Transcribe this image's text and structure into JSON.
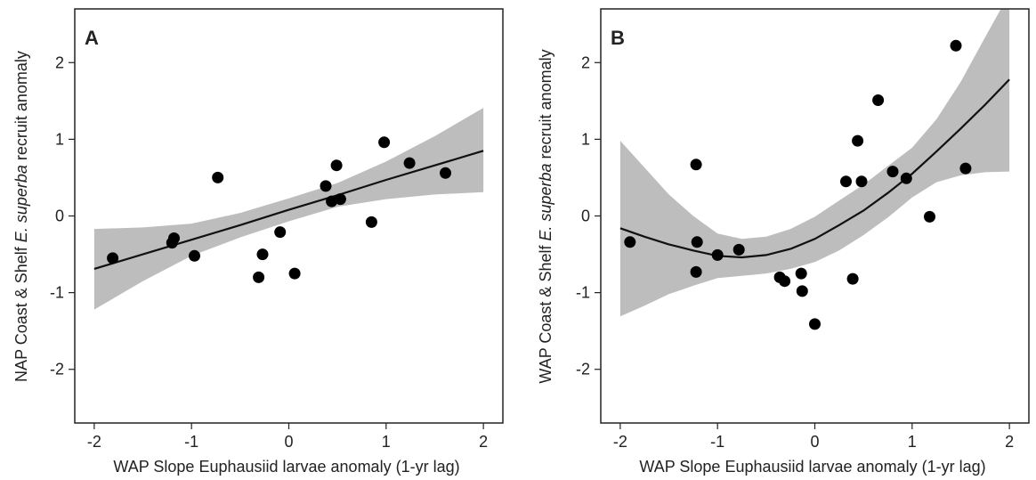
{
  "chart_data": [
    {
      "type": "scatter",
      "panel_label": "A",
      "ylabel_parts": [
        "NAP Coast & Shelf ",
        "E. superba",
        " recruit anomaly"
      ],
      "xlabel": "WAP Slope Euphausiid larvae anomaly (1-yr lag)",
      "xlim": [
        -2.2,
        2.2
      ],
      "ylim": [
        -2.7,
        2.7
      ],
      "xticks": [
        -2,
        -1,
        0,
        1,
        2
      ],
      "yticks": [
        -2,
        -1,
        0,
        1,
        2
      ],
      "grid": false,
      "points": {
        "x": [
          -1.81,
          -1.2,
          -1.18,
          -0.97,
          -0.73,
          -0.31,
          -0.27,
          -0.09,
          0.06,
          0.38,
          0.44,
          0.49,
          0.53,
          0.85,
          0.98,
          1.24,
          1.61
        ],
        "y": [
          -0.55,
          -0.35,
          -0.29,
          -0.52,
          0.5,
          -0.8,
          -0.5,
          -0.21,
          -0.75,
          0.39,
          0.19,
          0.66,
          0.22,
          -0.08,
          0.96,
          0.69,
          0.56
        ]
      },
      "fit": {
        "x": [
          -2.0,
          -1.5,
          -1.0,
          -0.5,
          0.0,
          0.5,
          1.0,
          1.5,
          2.0
        ],
        "y": [
          -0.69,
          -0.5,
          -0.31,
          -0.12,
          0.08,
          0.27,
          0.47,
          0.66,
          0.85
        ],
        "lower": [
          -1.22,
          -0.85,
          -0.52,
          -0.28,
          -0.07,
          0.12,
          0.22,
          0.28,
          0.31
        ],
        "upper": [
          -0.17,
          -0.15,
          -0.1,
          0.04,
          0.23,
          0.43,
          0.71,
          1.04,
          1.41
        ]
      },
      "colors": {
        "points": "#000000",
        "line": "#111111",
        "band": "#bdbdbd"
      }
    },
    {
      "type": "scatter",
      "panel_label": "B",
      "ylabel_parts": [
        "WAP Coast & Shelf ",
        "E. superba",
        " recruit anomaly"
      ],
      "xlabel": "WAP Slope Euphausiid larvae anomaly (1-yr lag)",
      "xlim": [
        -2.2,
        2.2
      ],
      "ylim": [
        -2.7,
        2.7
      ],
      "xticks": [
        -2,
        -1,
        0,
        1,
        2
      ],
      "yticks": [
        -2,
        -1,
        0,
        1,
        2
      ],
      "grid": false,
      "points": {
        "x": [
          -1.9,
          -1.22,
          -1.22,
          -1.21,
          -1.0,
          -0.78,
          -0.36,
          -0.31,
          -0.14,
          -0.13,
          0.0,
          0.32,
          0.39,
          0.44,
          0.48,
          0.65,
          0.8,
          0.94,
          1.18,
          1.45,
          1.55
        ],
        "y": [
          -0.34,
          -0.73,
          0.67,
          -0.34,
          -0.51,
          -0.44,
          -0.8,
          -0.85,
          -0.75,
          -0.98,
          -1.41,
          0.45,
          -0.82,
          0.98,
          0.45,
          1.51,
          0.58,
          0.49,
          -0.01,
          2.22,
          0.62
        ]
      },
      "fit": {
        "x": [
          -2.0,
          -1.75,
          -1.5,
          -1.25,
          -1.0,
          -0.75,
          -0.5,
          -0.25,
          0.0,
          0.25,
          0.5,
          0.75,
          1.0,
          1.25,
          1.5,
          1.75,
          2.0
        ],
        "y": [
          -0.16,
          -0.27,
          -0.37,
          -0.45,
          -0.52,
          -0.54,
          -0.51,
          -0.43,
          -0.3,
          -0.12,
          0.07,
          0.3,
          0.55,
          0.84,
          1.14,
          1.45,
          1.78
        ],
        "lower": [
          -1.31,
          -1.17,
          -1.02,
          -0.91,
          -0.81,
          -0.78,
          -0.75,
          -0.69,
          -0.6,
          -0.45,
          -0.25,
          -0.02,
          0.24,
          0.44,
          0.53,
          0.57,
          0.58
        ],
        "upper": [
          0.98,
          0.63,
          0.28,
          0.0,
          -0.23,
          -0.3,
          -0.27,
          -0.17,
          -0.01,
          0.2,
          0.41,
          0.65,
          0.89,
          1.26,
          1.75,
          2.33,
          2.9
        ]
      },
      "colors": {
        "points": "#000000",
        "line": "#111111",
        "band": "#bdbdbd"
      }
    }
  ]
}
